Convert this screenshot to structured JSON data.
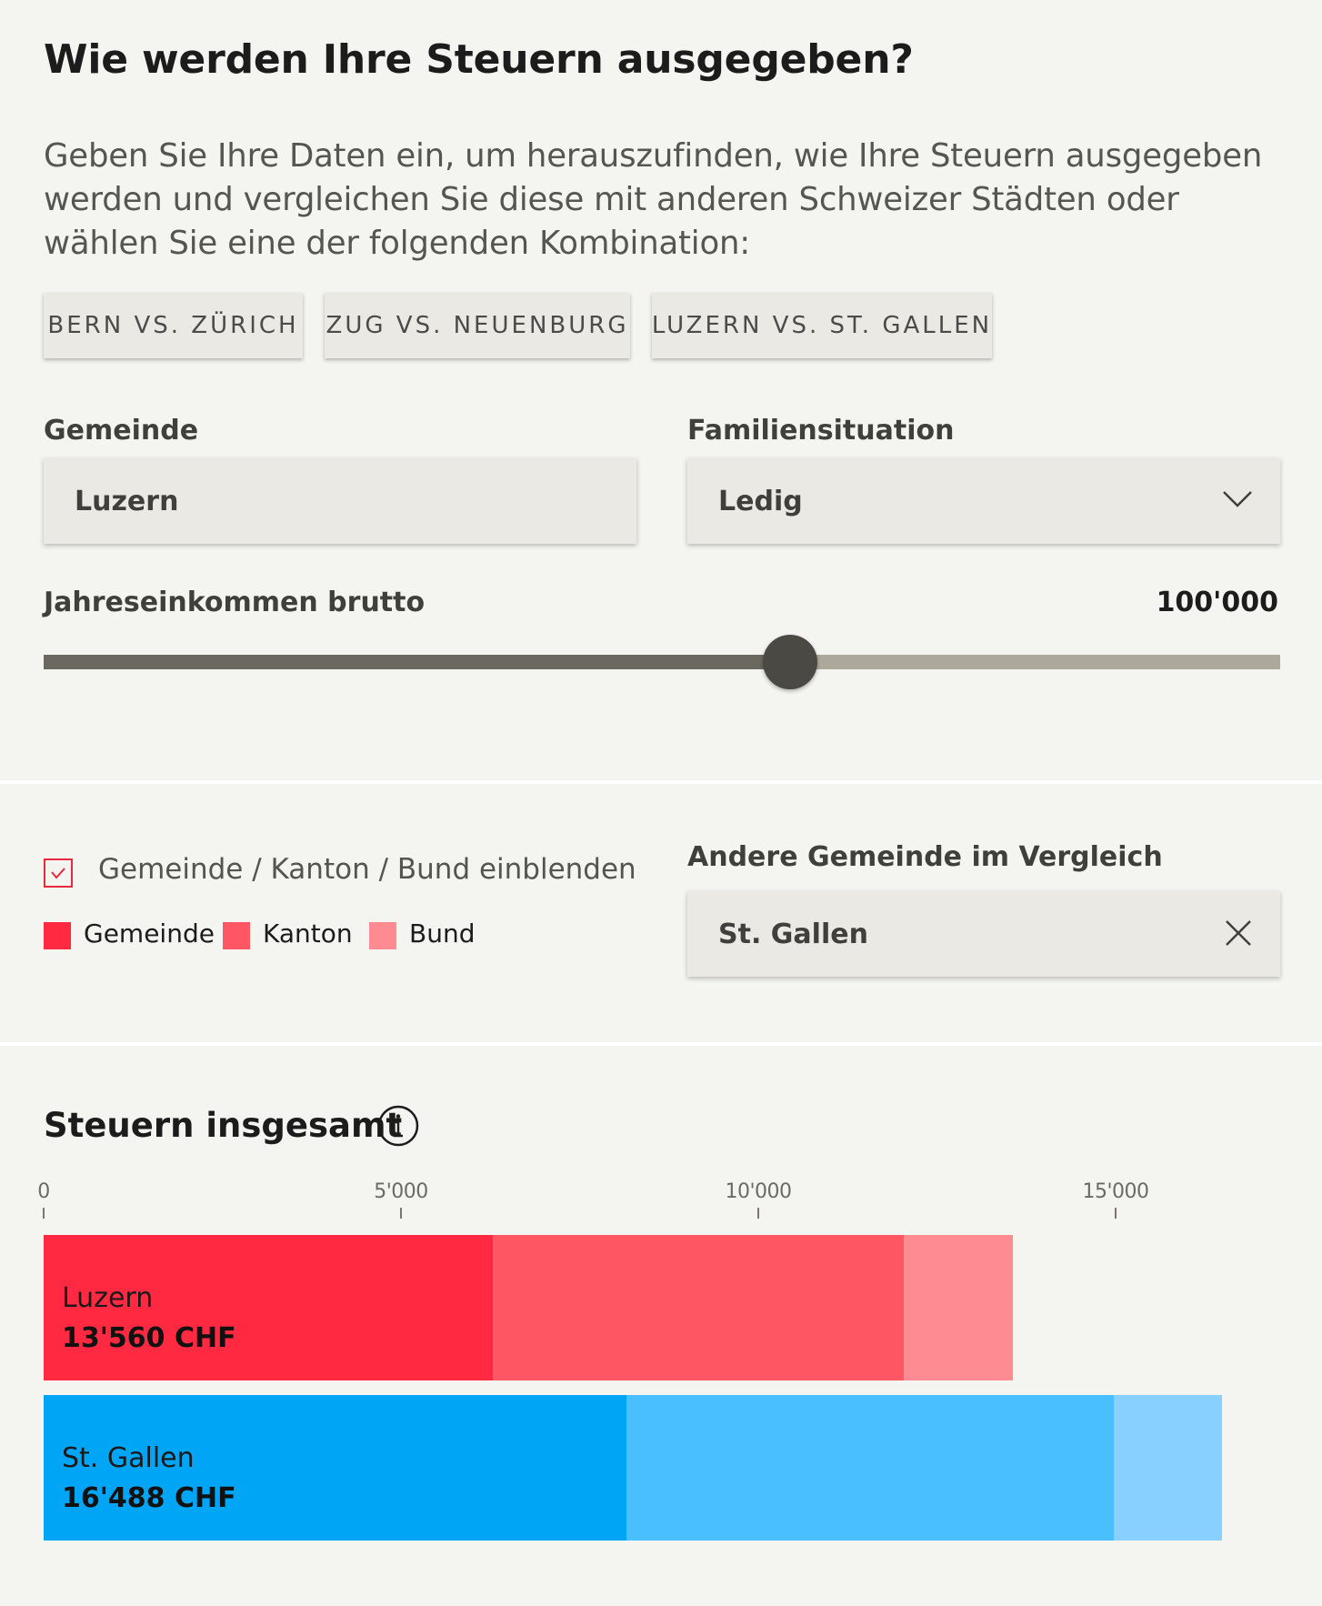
{
  "page": {
    "title": "Wie werden Ihre Steuern ausgegeben?",
    "intro": "Geben Sie Ihre Daten ein, um herauszufinden, wie Ihre Steuern ausgegeben werden und vergleichen Sie diese mit anderen Schweizer Städten oder wählen Sie eine der folgenden Kombination:"
  },
  "presets": [
    "BERN VS. ZÜRICH",
    "ZUG VS. NEUENBURG",
    "LUZERN VS. ST. GALLEN"
  ],
  "form": {
    "gemeinde_label": "Gemeinde",
    "gemeinde_value": "Luzern",
    "familie_label": "Familiensituation",
    "familie_value": "Ledig",
    "familie_icon": "chevron-down-icon",
    "income_label": "Jahreseinkommen brutto",
    "income_value": "100'000",
    "income_slider_fraction": 0.604
  },
  "options": {
    "toggle_label": "Gemeinde / Kanton / Bund einblenden",
    "toggle_checked": true,
    "legend": [
      {
        "label": "Gemeinde",
        "color": "#ff2a41"
      },
      {
        "label": "Kanton",
        "color": "#ff5663"
      },
      {
        "label": "Bund",
        "color": "#ff8b92"
      }
    ],
    "compare_label": "Andere Gemeinde im Vergleich",
    "compare_value": "St. Gallen",
    "compare_clear_icon": "close-icon"
  },
  "chart_title": "Steuern insgesamt",
  "chart_info_icon": "info-icon",
  "chart_data": {
    "type": "bar",
    "orientation": "horizontal",
    "stacked": true,
    "title": "Steuern insgesamt",
    "xlim": [
      0,
      17000
    ],
    "ticks": [
      0,
      5000,
      10000,
      15000
    ],
    "tick_labels": [
      "0",
      "5'000",
      "10'000",
      "15'000"
    ],
    "categories": [
      "Luzern",
      "St. Gallen"
    ],
    "totals_labels": [
      "13'560 CHF",
      "16'488 CHF"
    ],
    "series": [
      {
        "name": "Gemeinde",
        "values": [
          6290,
          8150
        ],
        "colors": [
          "#ff2a41",
          "#00a5f5"
        ]
      },
      {
        "name": "Kanton",
        "values": [
          5750,
          6820
        ],
        "colors": [
          "#ff5663",
          "#4abfff"
        ]
      },
      {
        "name": "Bund",
        "values": [
          1520,
          1518
        ],
        "colors": [
          "#ff8b92",
          "#88d0ff"
        ]
      }
    ]
  }
}
